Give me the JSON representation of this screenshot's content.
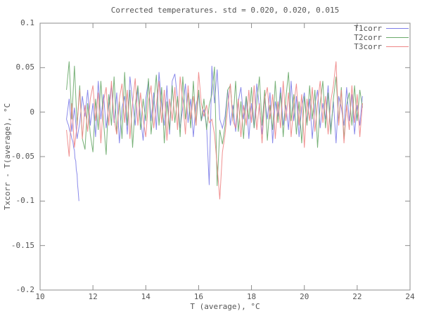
{
  "window": {
    "background": "#ffffff",
    "text_color": "#555555",
    "border_color": "#8c8c8c"
  },
  "chart_data": {
    "type": "line",
    "title": "Corrected temperatures. std = 0.020, 0.020, 0.015",
    "xlabel": "T (average), °C",
    "ylabel": "Txcorr - T(average), °C",
    "xlim": [
      10,
      24
    ],
    "ylim": [
      -0.2,
      0.1
    ],
    "grid": false,
    "legend_position": "top-right-inside",
    "xticks": [
      {
        "v": 10,
        "label": "10"
      },
      {
        "v": 12,
        "label": "12"
      },
      {
        "v": 14,
        "label": "14"
      },
      {
        "v": 16,
        "label": "16"
      },
      {
        "v": 18,
        "label": "18"
      },
      {
        "v": 20,
        "label": "20"
      },
      {
        "v": 22,
        "label": "22"
      },
      {
        "v": 24,
        "label": "24"
      }
    ],
    "yticks": [
      {
        "v": 0.1,
        "label": "0.1"
      },
      {
        "v": 0.05,
        "label": "0.05"
      },
      {
        "v": 0,
        "label": "0"
      },
      {
        "v": -0.05,
        "label": "-0.05"
      },
      {
        "v": -0.1,
        "label": "-0.1"
      },
      {
        "v": -0.15,
        "label": "-0.15"
      },
      {
        "v": -0.2,
        "label": "-0.2"
      }
    ],
    "y_scale": 0.001,
    "series": [
      {
        "name": "T1corr",
        "color": "#7e7ee8",
        "x0": 11.0,
        "dx": 0.1,
        "prefix": [
          [
            11.47,
            -100
          ],
          [
            11.44,
            -88
          ],
          [
            11.42,
            -82
          ],
          [
            11.4,
            -70
          ],
          [
            11.37,
            -65
          ],
          [
            11.35,
            -55
          ],
          [
            11.32,
            -52
          ],
          [
            11.3,
            -43
          ],
          [
            11.27,
            -40
          ],
          [
            11.24,
            -33
          ],
          [
            11.2,
            -30
          ],
          [
            11.16,
            -24
          ],
          [
            11.12,
            -21
          ],
          [
            11.08,
            -15
          ],
          [
            11.04,
            -12
          ]
        ],
        "y_milli": [
          -8,
          15,
          -22,
          5,
          -30,
          -12,
          18,
          -5,
          25,
          -15,
          10,
          -28,
          35,
          -8,
          20,
          -18,
          8,
          30,
          -12,
          22,
          -35,
          5,
          18,
          -25,
          40,
          12,
          -15,
          28,
          -5,
          -32,
          15,
          35,
          -10,
          22,
          -20,
          45,
          8,
          -15,
          30,
          -25,
          35,
          43,
          15,
          -18,
          5,
          32,
          -12,
          15,
          -28,
          8,
          20,
          -10,
          3,
          -15,
          -82,
          52,
          10,
          48,
          -8,
          -18,
          -5,
          25,
          -15,
          8,
          -22,
          12,
          28,
          -8,
          18,
          -30,
          10,
          -18,
          32,
          5,
          -25,
          15,
          -8,
          22,
          -35,
          12,
          -5,
          28,
          -15,
          8,
          -20,
          35,
          -10,
          18,
          -28,
          5,
          22,
          -12,
          15,
          -30,
          8,
          25,
          -18,
          10,
          -8,
          30,
          -20,
          12,
          -35,
          18,
          5,
          -15,
          28,
          -10,
          20,
          -25,
          8,
          -15,
          18
        ]
      },
      {
        "name": "T2corr",
        "color": "#6aaa6a",
        "x0": 11.0,
        "dx": 0.1,
        "y_milli": [
          25,
          57,
          -8,
          52,
          -15,
          30,
          -30,
          -42,
          10,
          -25,
          -45,
          15,
          -20,
          35,
          -10,
          -48,
          20,
          -15,
          40,
          -25,
          12,
          -30,
          45,
          -15,
          25,
          -40,
          8,
          30,
          -20,
          15,
          -10,
          38,
          -25,
          10,
          42,
          -15,
          28,
          -35,
          12,
          -20,
          30,
          -12,
          18,
          -28,
          40,
          -8,
          22,
          -18,
          35,
          -15,
          25,
          -10,
          15,
          -20,
          8,
          20,
          51,
          -83,
          -20,
          -36,
          -15,
          25,
          30,
          -10,
          35,
          -22,
          12,
          -30,
          18,
          -8,
          28,
          -18,
          10,
          40,
          -15,
          25,
          -32,
          8,
          -20,
          35,
          -12,
          22,
          -28,
          15,
          45,
          -10,
          20,
          -25,
          12,
          -35,
          18,
          -15,
          30,
          -8,
          25,
          -40,
          10,
          35,
          -18,
          22,
          -25,
          15,
          40,
          -12,
          28,
          -30,
          8,
          22,
          -15,
          30,
          -10,
          25,
          5
        ]
      },
      {
        "name": "T3corr",
        "color": "#ee8585",
        "x0": 11.0,
        "dx": 0.1,
        "y_milli": [
          -20,
          -50,
          10,
          -40,
          -15,
          25,
          -30,
          8,
          -22,
          15,
          30,
          -10,
          22,
          -35,
          12,
          28,
          -15,
          35,
          -8,
          -25,
          15,
          32,
          -12,
          25,
          -30,
          10,
          38,
          -15,
          22,
          -8,
          -28,
          12,
          30,
          -18,
          8,
          35,
          -12,
          25,
          -32,
          15,
          -10,
          28,
          -20,
          40,
          12,
          -25,
          30,
          -8,
          18,
          -15,
          45,
          10,
          -5,
          8,
          -12,
          -8,
          -25,
          -60,
          -98,
          -45,
          -25,
          5,
          32,
          -10,
          -18,
          15,
          -28,
          8,
          -15,
          25,
          -12,
          30,
          -20,
          10,
          -35,
          15,
          28,
          -8,
          20,
          -30,
          12,
          -18,
          35,
          -10,
          22,
          -28,
          8,
          32,
          -15,
          20,
          -40,
          15,
          -10,
          28,
          -22,
          10,
          35,
          -12,
          18,
          -25,
          12,
          30,
          57,
          -15,
          25,
          -35,
          8,
          -20,
          30,
          -12,
          20,
          -28,
          10
        ]
      }
    ]
  }
}
